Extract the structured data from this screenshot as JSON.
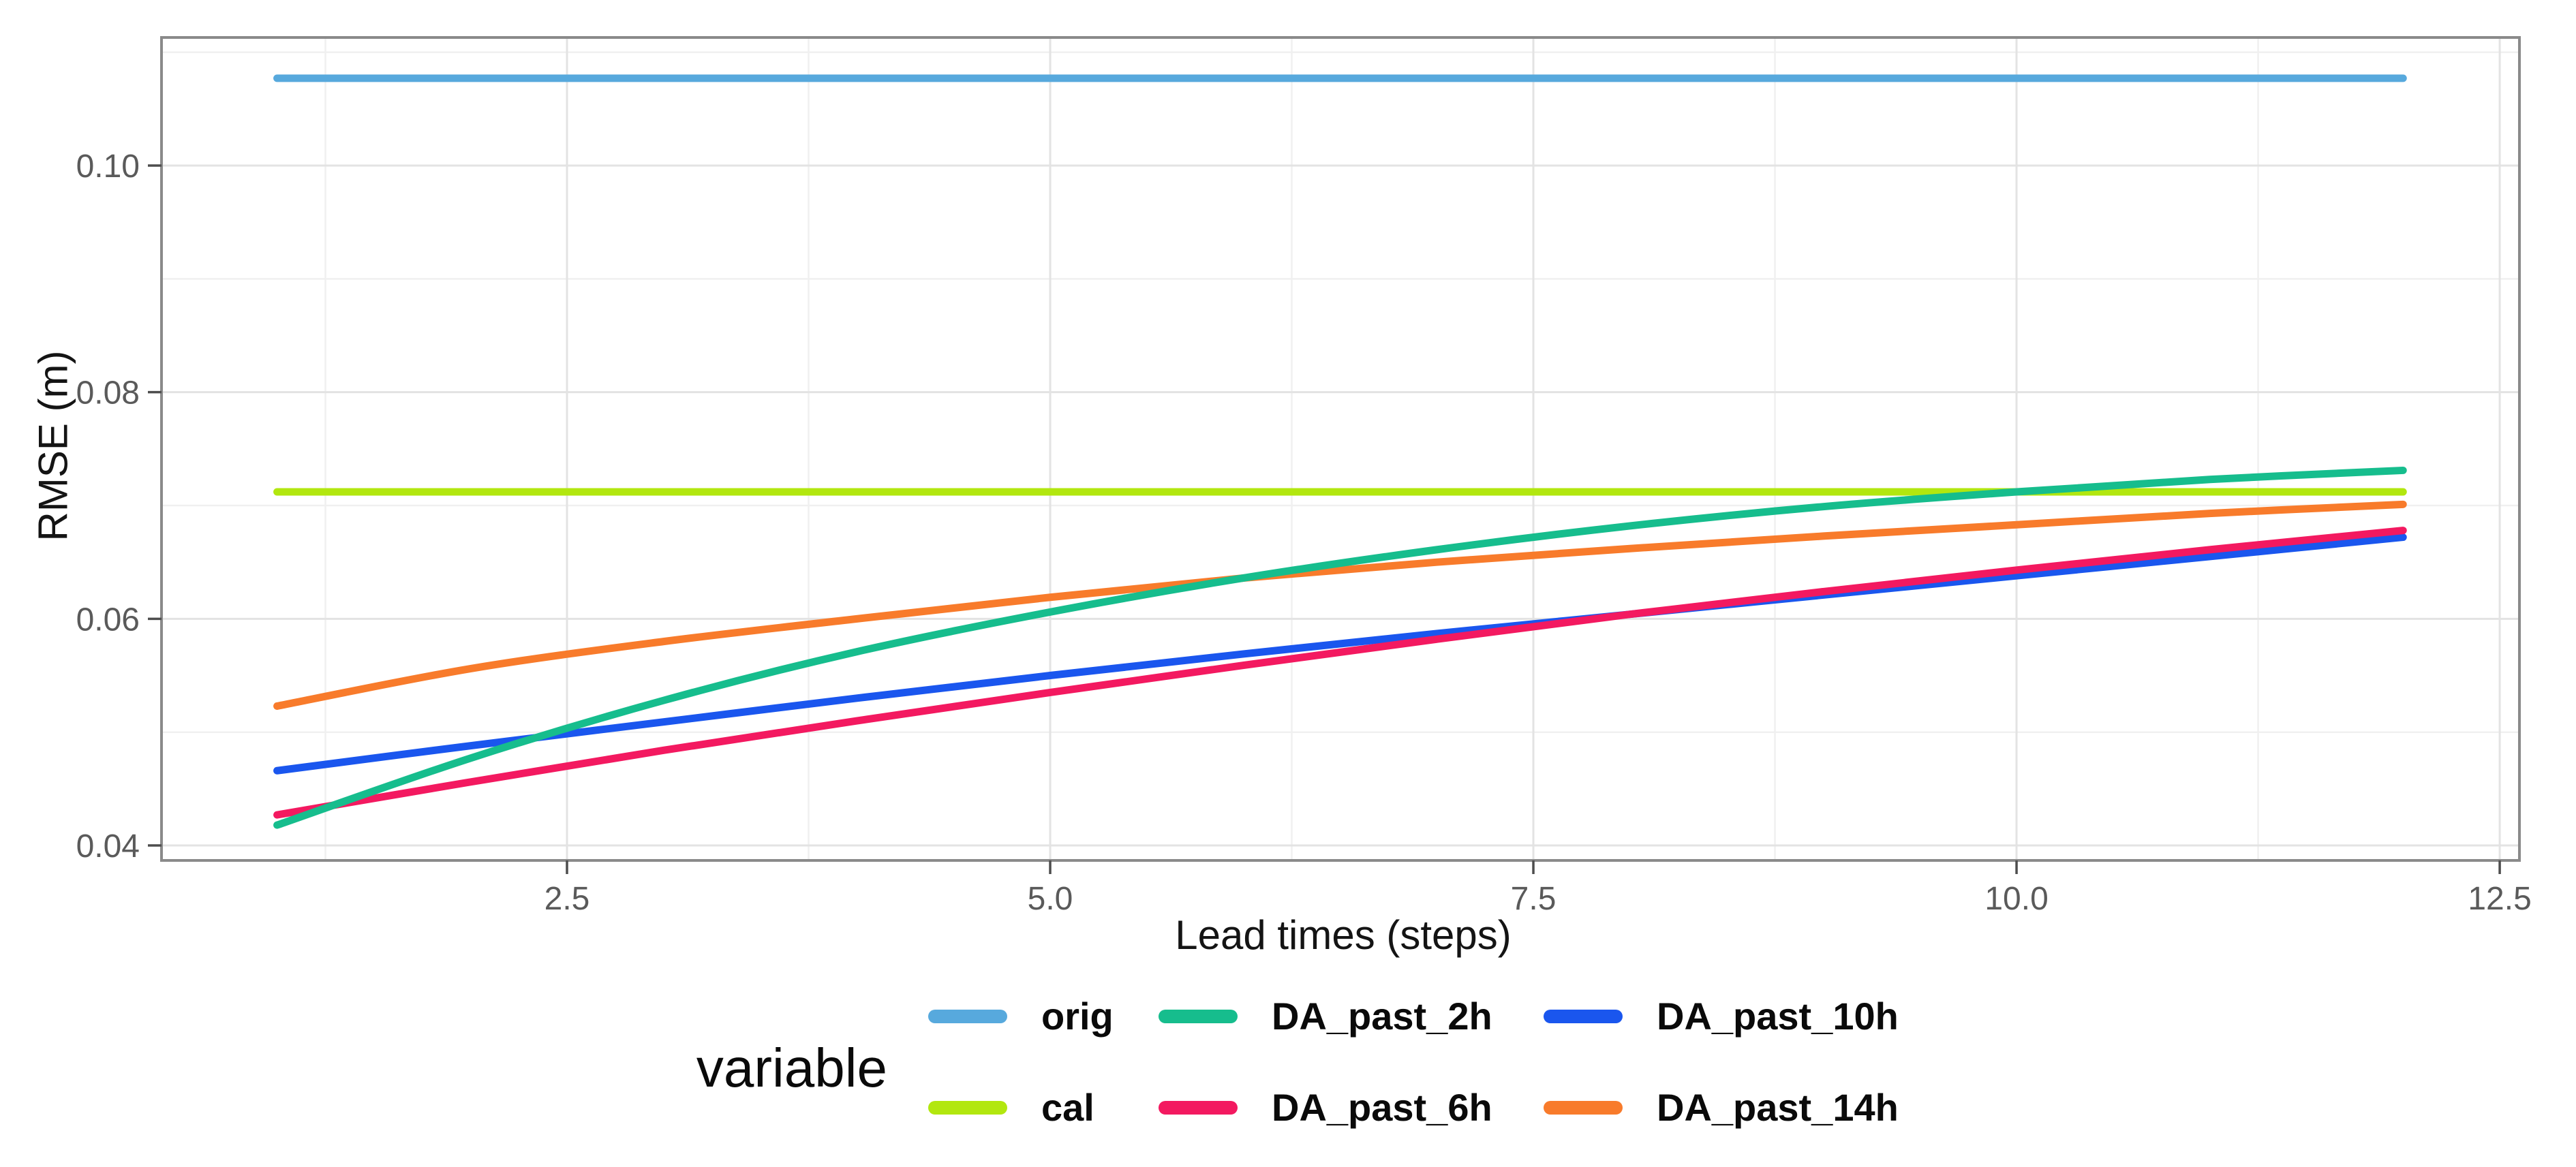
{
  "figure": {
    "background": "#ffffff",
    "panel_border_color": "#8a8a8a",
    "grid_major_color": "#e3e3e3",
    "grid_minor_color": "#f0f0f0",
    "tick_mark_color": "#4d4d4d",
    "tick_label_color": "#5a5a5a"
  },
  "axes": {
    "x": {
      "title": "Lead times (steps)",
      "tick_labels": [
        "2.5",
        "5.0",
        "7.5",
        "10.0",
        "12.5"
      ],
      "tick_values": [
        2.5,
        5.0,
        7.5,
        10.0,
        12.5
      ],
      "minor_values": [
        1.25,
        3.75,
        6.25,
        8.75,
        11.25
      ],
      "domain": [
        0.402,
        12.602
      ]
    },
    "y": {
      "title": "RMSE (m)",
      "tick_labels": [
        "0.04",
        "0.06",
        "0.08",
        "0.10"
      ],
      "tick_values": [
        0.04,
        0.06,
        0.08,
        0.1
      ],
      "minor_values": [
        0.05,
        0.07,
        0.09,
        0.11
      ],
      "domain": [
        0.03868,
        0.1113
      ]
    }
  },
  "legend": {
    "title": "variable",
    "items": [
      {
        "label": "orig",
        "color": "#57a9dd"
      },
      {
        "label": "cal",
        "color": "#b2e70f"
      },
      {
        "label": "DA_past_2h",
        "color": "#16bd8d"
      },
      {
        "label": "DA_past_6h",
        "color": "#f31960"
      },
      {
        "label": "DA_past_10h",
        "color": "#1a56ee"
      },
      {
        "label": "DA_past_14h",
        "color": "#f87b2b"
      }
    ]
  },
  "chart_data": {
    "type": "line",
    "title": "",
    "xlabel": "Lead times (steps)",
    "ylabel": "RMSE (m)",
    "xlim": [
      0.402,
      12.602
    ],
    "ylim": [
      0.03868,
      0.1113
    ],
    "grid": true,
    "legend_position": "bottom",
    "x": [
      1,
      2,
      3,
      4,
      5,
      6,
      7,
      8,
      9,
      10,
      11,
      12
    ],
    "series": [
      {
        "name": "orig",
        "color": "#57a9dd",
        "values": [
          0.1077,
          0.1077,
          0.1077,
          0.1077,
          0.1077,
          0.1077,
          0.1077,
          0.1077,
          0.1077,
          0.1077,
          0.1077,
          0.1077
        ]
      },
      {
        "name": "cal",
        "color": "#b2e70f",
        "values": [
          0.0712,
          0.0712,
          0.0712,
          0.0712,
          0.0712,
          0.0712,
          0.0712,
          0.0712,
          0.0712,
          0.0712,
          0.0712,
          0.0712
        ]
      },
      {
        "name": "DA_past_2h",
        "color": "#16bd8d",
        "values": [
          0.0418,
          0.0477,
          0.0528,
          0.0571,
          0.0606,
          0.0636,
          0.0661,
          0.0682,
          0.0699,
          0.0712,
          0.0723,
          0.0731
        ]
      },
      {
        "name": "DA_past_6h",
        "color": "#f31960",
        "values": [
          0.0427,
          0.0456,
          0.0484,
          0.051,
          0.0535,
          0.0559,
          0.0582,
          0.0604,
          0.0624,
          0.0643,
          0.0661,
          0.0678
        ]
      },
      {
        "name": "DA_past_10h",
        "color": "#1a56ee",
        "values": [
          0.0466,
          0.0488,
          0.0509,
          0.053,
          0.055,
          0.0569,
          0.0587,
          0.0604,
          0.0621,
          0.0638,
          0.0655,
          0.0672
        ]
      },
      {
        "name": "DA_past_14h",
        "color": "#f87b2b",
        "values": [
          0.0523,
          0.0556,
          0.058,
          0.06,
          0.0619,
          0.0636,
          0.065,
          0.0662,
          0.0673,
          0.0683,
          0.0693,
          0.0701
        ]
      }
    ],
    "draw_order": [
      "orig",
      "cal",
      "DA_past_14h",
      "DA_past_10h",
      "DA_past_6h",
      "DA_past_2h"
    ]
  }
}
